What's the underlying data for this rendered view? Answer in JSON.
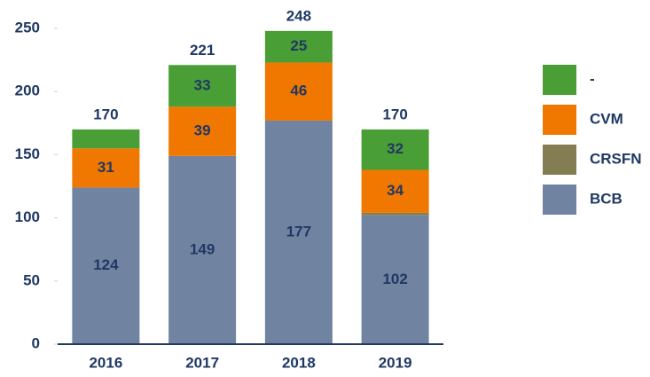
{
  "chart_data": {
    "type": "stacked_bar",
    "categories": [
      "2016",
      "2017",
      "2018",
      "2019"
    ],
    "series": [
      {
        "name": "BCB",
        "color": "#7083a0",
        "values": [
          124,
          149,
          177,
          102
        ],
        "show_labels": true
      },
      {
        "name": "CRSFN",
        "color": "#857d52",
        "values": [
          0,
          0,
          0,
          2
        ],
        "show_labels": false
      },
      {
        "name": "CVM",
        "color": "#f07800",
        "values": [
          31,
          39,
          46,
          34
        ],
        "show_labels": true
      },
      {
        "name": "-",
        "color": "#4a9e36",
        "values": [
          15,
          33,
          25,
          32
        ],
        "value_labels": [
          null,
          "33",
          "25",
          "32"
        ],
        "show_labels": true
      }
    ],
    "totals": [
      170,
      221,
      248,
      170
    ],
    "ylim": [
      0,
      250
    ],
    "yticks": [
      0,
      50,
      100,
      150,
      200,
      250
    ],
    "grid": false
  }
}
